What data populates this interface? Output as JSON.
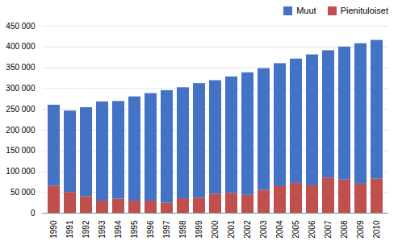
{
  "chart_data": {
    "type": "bar",
    "stacked": true,
    "categories": [
      "1990",
      "1991",
      "1992",
      "1993",
      "1994",
      "1995",
      "1996",
      "1997",
      "1998",
      "1999",
      "2000",
      "2001",
      "2002",
      "2003",
      "2004",
      "2005",
      "2006",
      "2007",
      "2008",
      "2009",
      "2010"
    ],
    "series": [
      {
        "name": "Pienituloiset",
        "color": "#C0504D",
        "values": [
          65000,
          50000,
          40000,
          29000,
          34000,
          29000,
          29000,
          24000,
          35000,
          36000,
          46000,
          48000,
          43000,
          55000,
          64000,
          72000,
          66000,
          85000,
          80000,
          70000,
          82000
        ]
      },
      {
        "name": "Muut",
        "color": "#4472C4",
        "values": [
          195000,
          196000,
          214000,
          239000,
          235000,
          251000,
          259000,
          271000,
          267000,
          276000,
          273000,
          280000,
          295000,
          293000,
          296000,
          299000,
          315000,
          306000,
          320000,
          338000,
          334000
        ]
      }
    ],
    "ylim": [
      0,
      450000
    ],
    "yticks": [
      0,
      {
        "value": 50000,
        "label": "50 000"
      },
      {
        "value": 100000,
        "label": "100 000"
      },
      {
        "value": 150000,
        "label": "150 000"
      },
      {
        "value": 200000,
        "label": "200 000"
      },
      {
        "value": 250000,
        "label": "250 000"
      },
      {
        "value": 300000,
        "label": "300 000"
      },
      {
        "value": 350000,
        "label": "350 000"
      },
      {
        "value": 400000,
        "label": "400 000"
      },
      {
        "value": 450000,
        "label": "450 000"
      }
    ],
    "grid": true,
    "legend": "upper right"
  }
}
